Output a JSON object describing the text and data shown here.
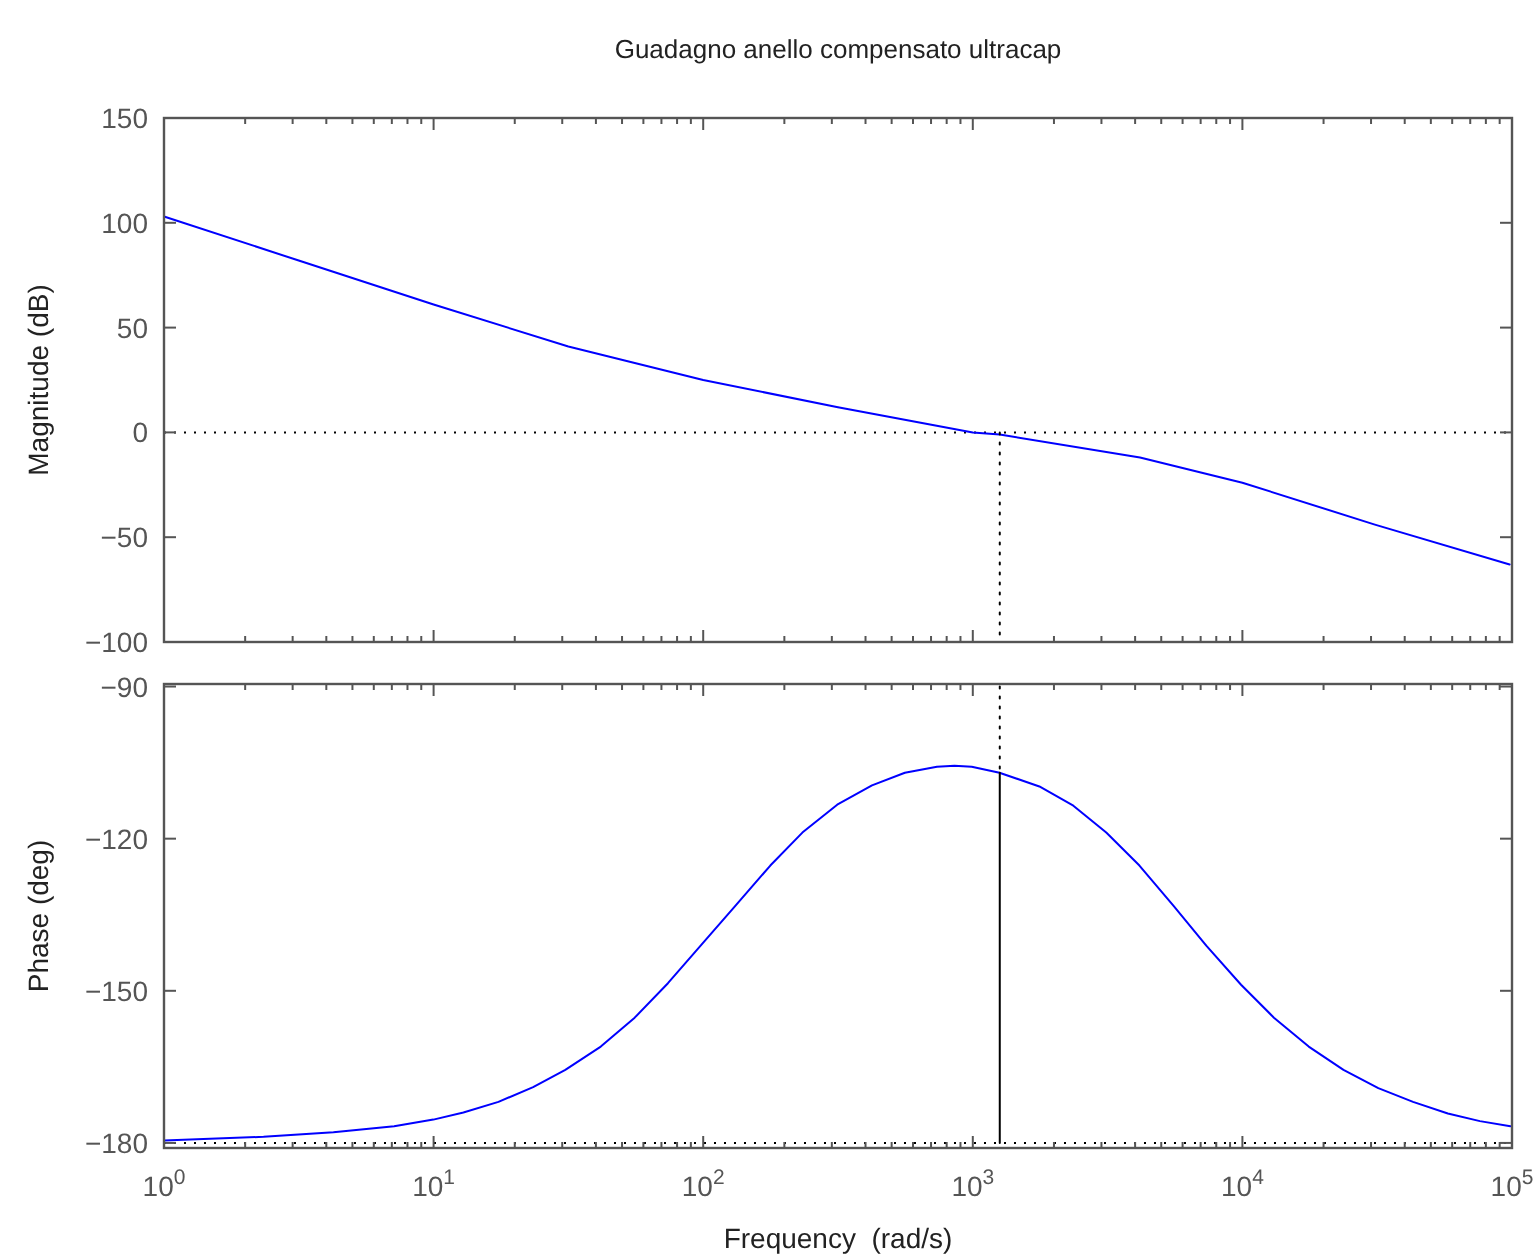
{
  "chart_data": [
    {
      "type": "line",
      "title": "Guadagno anello compensato ultracap",
      "ylabel": "Magnitude (dB)",
      "log": "x",
      "grid": false,
      "tick_labels": "y",
      "xlim": [
        1,
        100000
      ],
      "xticks": [
        {
          "value": 1,
          "label": null
        },
        {
          "value": 10,
          "label": null
        },
        {
          "value": 100,
          "label": null
        },
        {
          "value": 1000,
          "label": null
        },
        {
          "value": 10000,
          "label": null
        },
        {
          "value": 100000,
          "label": null
        }
      ],
      "ylim": [
        -100,
        150
      ],
      "yticks": [
        {
          "value": -100,
          "label": "−100"
        },
        {
          "value": -50,
          "label": "−50"
        },
        0,
        50,
        100,
        150
      ],
      "ref_lines": [
        {
          "axis": "y",
          "value": 0,
          "color": "#000000",
          "line_style": "dotted"
        }
      ],
      "series": [
        {
          "color": "#0000ff",
          "line_style": "solid",
          "x": [
            1,
            3.16,
            10,
            31.6,
            100,
            316,
            1000,
            1259,
            4170,
            10000,
            31000,
            98000
          ],
          "values": [
            103,
            82,
            61,
            41,
            25,
            12,
            0,
            -1,
            -12,
            -24,
            -44,
            -63
          ]
        },
        {
          "color": "#000000",
          "line_style": "dotted",
          "x": [
            1259,
            1259
          ],
          "values": [
            0,
            -100
          ]
        }
      ]
    },
    {
      "type": "line",
      "xlabel": "Frequency  (rad/s)",
      "ylabel": "Phase (deg)",
      "log": "x",
      "grid": false,
      "xlim": [
        1,
        100000
      ],
      "xticks": [
        {
          "value": 1,
          "label": "10$^{0}$"
        },
        {
          "value": 10,
          "label": "10$^{1}$"
        },
        {
          "value": 100,
          "label": "10$^{2}$"
        },
        {
          "value": 1000,
          "label": "10$^{3}$"
        },
        {
          "value": 10000,
          "label": "10$^{4}$"
        },
        {
          "value": 100000,
          "label": "10$^{5}$"
        }
      ],
      "ylim": [
        -181,
        -89.5
      ],
      "yticks": [
        {
          "value": -180,
          "label": "−180"
        },
        {
          "value": -150,
          "label": "−150"
        },
        {
          "value": -120,
          "label": "−120"
        },
        {
          "value": -90,
          "label": "−90"
        }
      ],
      "ref_lines": [
        {
          "axis": "y",
          "value": -180,
          "color": "#000000",
          "line_style": "dotted"
        }
      ],
      "series": [
        {
          "color": "#0000ff",
          "line_style": "solid",
          "x": [
            1,
            2.34,
            4.25,
            7.14,
            9.98,
            12.9,
            17.4,
            23.4,
            30.8,
            41.7,
            55.7,
            74.0,
            99.3,
            131.8,
            177.4,
            233.3,
            314.1,
            422.7,
            559.8,
            736.2,
            855.1,
            990.8,
            1256,
            1766,
            2360,
            3126,
            4150,
            5546,
            7345,
            9886,
            13090,
            17620,
            23710,
            31920,
            42950,
            57810,
            76030,
            98620
          ],
          "values": [
            -179.5,
            -178.8,
            -177.9,
            -176.7,
            -175.4,
            -174.0,
            -171.9,
            -169.0,
            -165.6,
            -161.0,
            -155.3,
            -148.5,
            -140.7,
            -133.2,
            -125.3,
            -118.8,
            -113.3,
            -109.5,
            -107.0,
            -105.8,
            -105.6,
            -105.8,
            -107.0,
            -109.7,
            -113.5,
            -118.8,
            -125.3,
            -133.2,
            -141.1,
            -148.8,
            -155.3,
            -161.0,
            -165.6,
            -169.2,
            -171.9,
            -174.2,
            -175.7,
            -176.7
          ]
        },
        {
          "color": "#000000",
          "line_style": "dotted",
          "x": [
            1259,
            1259
          ],
          "values": [
            -90,
            -107
          ]
        },
        {
          "color": "#000000",
          "line_style": "solid",
          "x": [
            1259,
            1259
          ],
          "values": [
            -107,
            -180
          ]
        }
      ]
    }
  ]
}
